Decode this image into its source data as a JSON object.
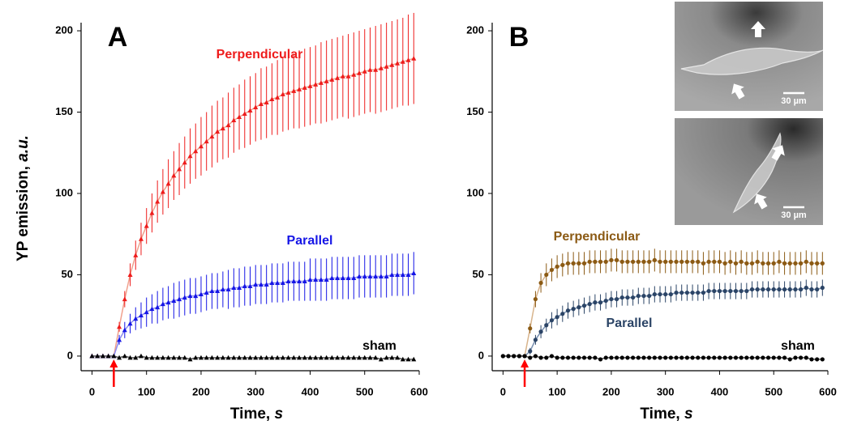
{
  "chart_data": [
    {
      "type": "errorline",
      "panel_label": "A",
      "marker": "triangle",
      "ylabel": {
        "text": "YP emission,",
        "unit": "a.u."
      },
      "xlabel": {
        "text": "Time,",
        "unit": "s"
      },
      "xlim": [
        -20,
        600
      ],
      "ylim": [
        -9,
        205
      ],
      "xticks": [
        0,
        100,
        200,
        300,
        400,
        500,
        600
      ],
      "yticks": [
        0,
        50,
        100,
        150,
        200
      ],
      "stimulus_time": 40,
      "x": [
        0,
        10,
        20,
        30,
        40,
        50,
        60,
        70,
        80,
        90,
        100,
        110,
        120,
        130,
        140,
        150,
        160,
        170,
        180,
        190,
        200,
        210,
        220,
        230,
        240,
        250,
        260,
        270,
        280,
        290,
        300,
        310,
        320,
        330,
        340,
        350,
        360,
        370,
        380,
        390,
        400,
        410,
        420,
        430,
        440,
        450,
        460,
        470,
        480,
        490,
        500,
        510,
        520,
        530,
        540,
        550,
        560,
        570,
        580,
        590
      ],
      "series": [
        {
          "name": "Perpendicular",
          "color": "#ee1c1c",
          "line_color": "#f0a08c",
          "values": [
            0,
            0,
            0,
            0,
            0,
            18,
            35,
            50,
            62,
            72,
            80,
            88,
            95,
            101,
            106,
            111,
            115,
            119,
            123,
            126,
            129,
            132,
            135,
            138,
            140,
            142,
            145,
            147,
            149,
            151,
            153,
            155,
            156,
            158,
            159,
            161,
            162,
            163,
            164,
            165,
            166,
            167,
            168,
            169,
            170,
            171,
            172,
            172,
            173,
            174,
            175,
            176,
            176,
            177,
            178,
            179,
            180,
            181,
            182,
            183
          ],
          "errors": [
            0,
            0,
            0,
            0,
            0,
            3,
            5,
            7,
            9,
            10,
            11,
            12,
            13,
            14,
            15,
            15,
            16,
            16,
            17,
            17,
            18,
            18,
            19,
            19,
            19,
            20,
            20,
            20,
            21,
            21,
            21,
            22,
            22,
            22,
            23,
            23,
            23,
            23,
            24,
            24,
            24,
            24,
            25,
            25,
            25,
            25,
            25,
            26,
            26,
            26,
            26,
            26,
            27,
            27,
            27,
            27,
            27,
            27,
            28,
            28
          ]
        },
        {
          "name": "Parallel",
          "color": "#1515e6",
          "line_color": "#8c8cf0",
          "values": [
            0,
            0,
            0,
            0,
            0,
            10,
            16,
            20,
            23,
            25,
            27,
            29,
            30,
            32,
            33,
            34,
            35,
            36,
            37,
            37,
            38,
            39,
            40,
            40,
            41,
            41,
            42,
            42,
            43,
            43,
            44,
            44,
            44,
            45,
            45,
            45,
            46,
            46,
            46,
            46,
            47,
            47,
            47,
            47,
            48,
            48,
            48,
            48,
            48,
            49,
            49,
            49,
            49,
            49,
            49,
            50,
            50,
            50,
            50,
            51
          ],
          "errors": [
            0,
            0,
            0,
            0,
            0,
            3,
            5,
            6,
            7,
            8,
            9,
            9,
            10,
            10,
            10,
            11,
            11,
            11,
            11,
            11,
            11,
            11,
            11,
            11,
            11,
            12,
            12,
            12,
            12,
            12,
            12,
            12,
            12,
            12,
            12,
            12,
            12,
            12,
            12,
            12,
            13,
            13,
            13,
            13,
            13,
            13,
            13,
            13,
            13,
            13,
            13,
            13,
            13,
            13,
            13,
            13,
            13,
            13,
            13,
            13
          ]
        },
        {
          "name": "sham",
          "color": "#000000",
          "line_color": "#555555",
          "values": [
            0,
            0,
            0,
            0,
            0,
            -1,
            0,
            -1,
            -1,
            0,
            -1,
            -1,
            -1,
            -1,
            -1,
            -1,
            -1,
            -1,
            -2,
            -1,
            -1,
            -1,
            -1,
            -1,
            -1,
            -1,
            -1,
            -1,
            -1,
            -1,
            -1,
            -1,
            -1,
            -1,
            -1,
            -1,
            -1,
            -1,
            -1,
            -1,
            -1,
            -1,
            -1,
            -1,
            -1,
            -1,
            -1,
            -1,
            -1,
            -1,
            -1,
            -1,
            -1,
            -2,
            -1,
            -1,
            -1,
            -2,
            -2,
            -2
          ]
        }
      ]
    },
    {
      "type": "errorline",
      "panel_label": "B",
      "marker": "circle",
      "xlabel": {
        "text": "Time,",
        "unit": "s"
      },
      "xlim": [
        -20,
        600
      ],
      "ylim": [
        -9,
        205
      ],
      "xticks": [
        0,
        100,
        200,
        300,
        400,
        500,
        600
      ],
      "yticks": [
        0,
        50,
        100,
        150,
        200
      ],
      "stimulus_time": 40,
      "insets": [
        {
          "scale_label": "30 µm"
        },
        {
          "scale_label": "30 µm"
        }
      ],
      "x": [
        0,
        10,
        20,
        30,
        40,
        50,
        60,
        70,
        80,
        90,
        100,
        110,
        120,
        130,
        140,
        150,
        160,
        170,
        180,
        190,
        200,
        210,
        220,
        230,
        240,
        250,
        260,
        270,
        280,
        290,
        300,
        310,
        320,
        330,
        340,
        350,
        360,
        370,
        380,
        390,
        400,
        410,
        420,
        430,
        440,
        450,
        460,
        470,
        480,
        490,
        500,
        510,
        520,
        530,
        540,
        550,
        560,
        570,
        580,
        590
      ],
      "series": [
        {
          "name": "Perpendicular",
          "color": "#8b5a14",
          "line_color": "#d8b48c",
          "values": [
            0,
            0,
            0,
            0,
            0,
            17,
            35,
            45,
            50,
            53,
            55,
            56,
            57,
            57,
            57,
            57,
            58,
            58,
            58,
            58,
            59,
            59,
            58,
            58,
            58,
            58,
            58,
            58,
            59,
            58,
            58,
            58,
            58,
            58,
            58,
            58,
            58,
            57,
            58,
            58,
            58,
            57,
            58,
            57,
            58,
            57,
            57,
            58,
            57,
            57,
            57,
            58,
            57,
            57,
            57,
            57,
            58,
            57,
            57,
            57
          ],
          "errors": [
            0,
            0,
            0,
            0,
            0,
            3,
            5,
            6,
            7,
            7,
            7,
            7,
            7,
            7,
            7,
            7,
            7,
            7,
            7,
            7,
            7,
            7,
            7,
            7,
            7,
            7,
            7,
            7,
            7,
            7,
            7,
            7,
            7,
            7,
            7,
            7,
            7,
            7,
            7,
            7,
            7,
            7,
            7,
            7,
            7,
            7,
            7,
            7,
            7,
            7,
            7,
            7,
            7,
            7,
            7,
            7,
            7,
            7,
            7,
            7
          ]
        },
        {
          "name": "Parallel",
          "color": "#2b4466",
          "line_color": "#7890b0",
          "values": [
            0,
            0,
            0,
            0,
            0,
            3,
            10,
            15,
            19,
            22,
            24,
            26,
            28,
            29,
            30,
            31,
            32,
            33,
            33,
            34,
            35,
            35,
            36,
            36,
            36,
            37,
            37,
            37,
            38,
            38,
            38,
            38,
            39,
            39,
            39,
            39,
            39,
            39,
            40,
            40,
            40,
            40,
            40,
            40,
            40,
            40,
            41,
            41,
            41,
            41,
            41,
            41,
            41,
            41,
            41,
            41,
            42,
            41,
            41,
            42
          ],
          "errors": [
            0,
            0,
            0,
            0,
            0,
            2,
            3,
            4,
            4,
            5,
            5,
            5,
            5,
            5,
            5,
            5,
            5,
            5,
            5,
            5,
            5,
            5,
            5,
            5,
            5,
            5,
            5,
            5,
            5,
            5,
            5,
            5,
            5,
            5,
            5,
            5,
            5,
            5,
            5,
            5,
            5,
            5,
            5,
            5,
            5,
            5,
            5,
            5,
            5,
            5,
            5,
            5,
            5,
            5,
            5,
            5,
            5,
            5,
            5,
            5
          ]
        },
        {
          "name": "sham",
          "color": "#000000",
          "line_color": "#555555",
          "values": [
            0,
            0,
            0,
            0,
            0,
            -1,
            0,
            -1,
            -1,
            0,
            -1,
            -1,
            -1,
            -1,
            -1,
            -1,
            -1,
            -1,
            -2,
            -1,
            -1,
            -1,
            -1,
            -1,
            -1,
            -1,
            -1,
            -1,
            -1,
            -1,
            -1,
            -1,
            -1,
            -1,
            -1,
            -1,
            -1,
            -1,
            -1,
            -1,
            -1,
            -1,
            -1,
            -1,
            -1,
            -1,
            -1,
            -1,
            -1,
            -1,
            -1,
            -1,
            -1,
            -2,
            -1,
            -1,
            -1,
            -2,
            -2,
            -2
          ]
        }
      ]
    }
  ]
}
